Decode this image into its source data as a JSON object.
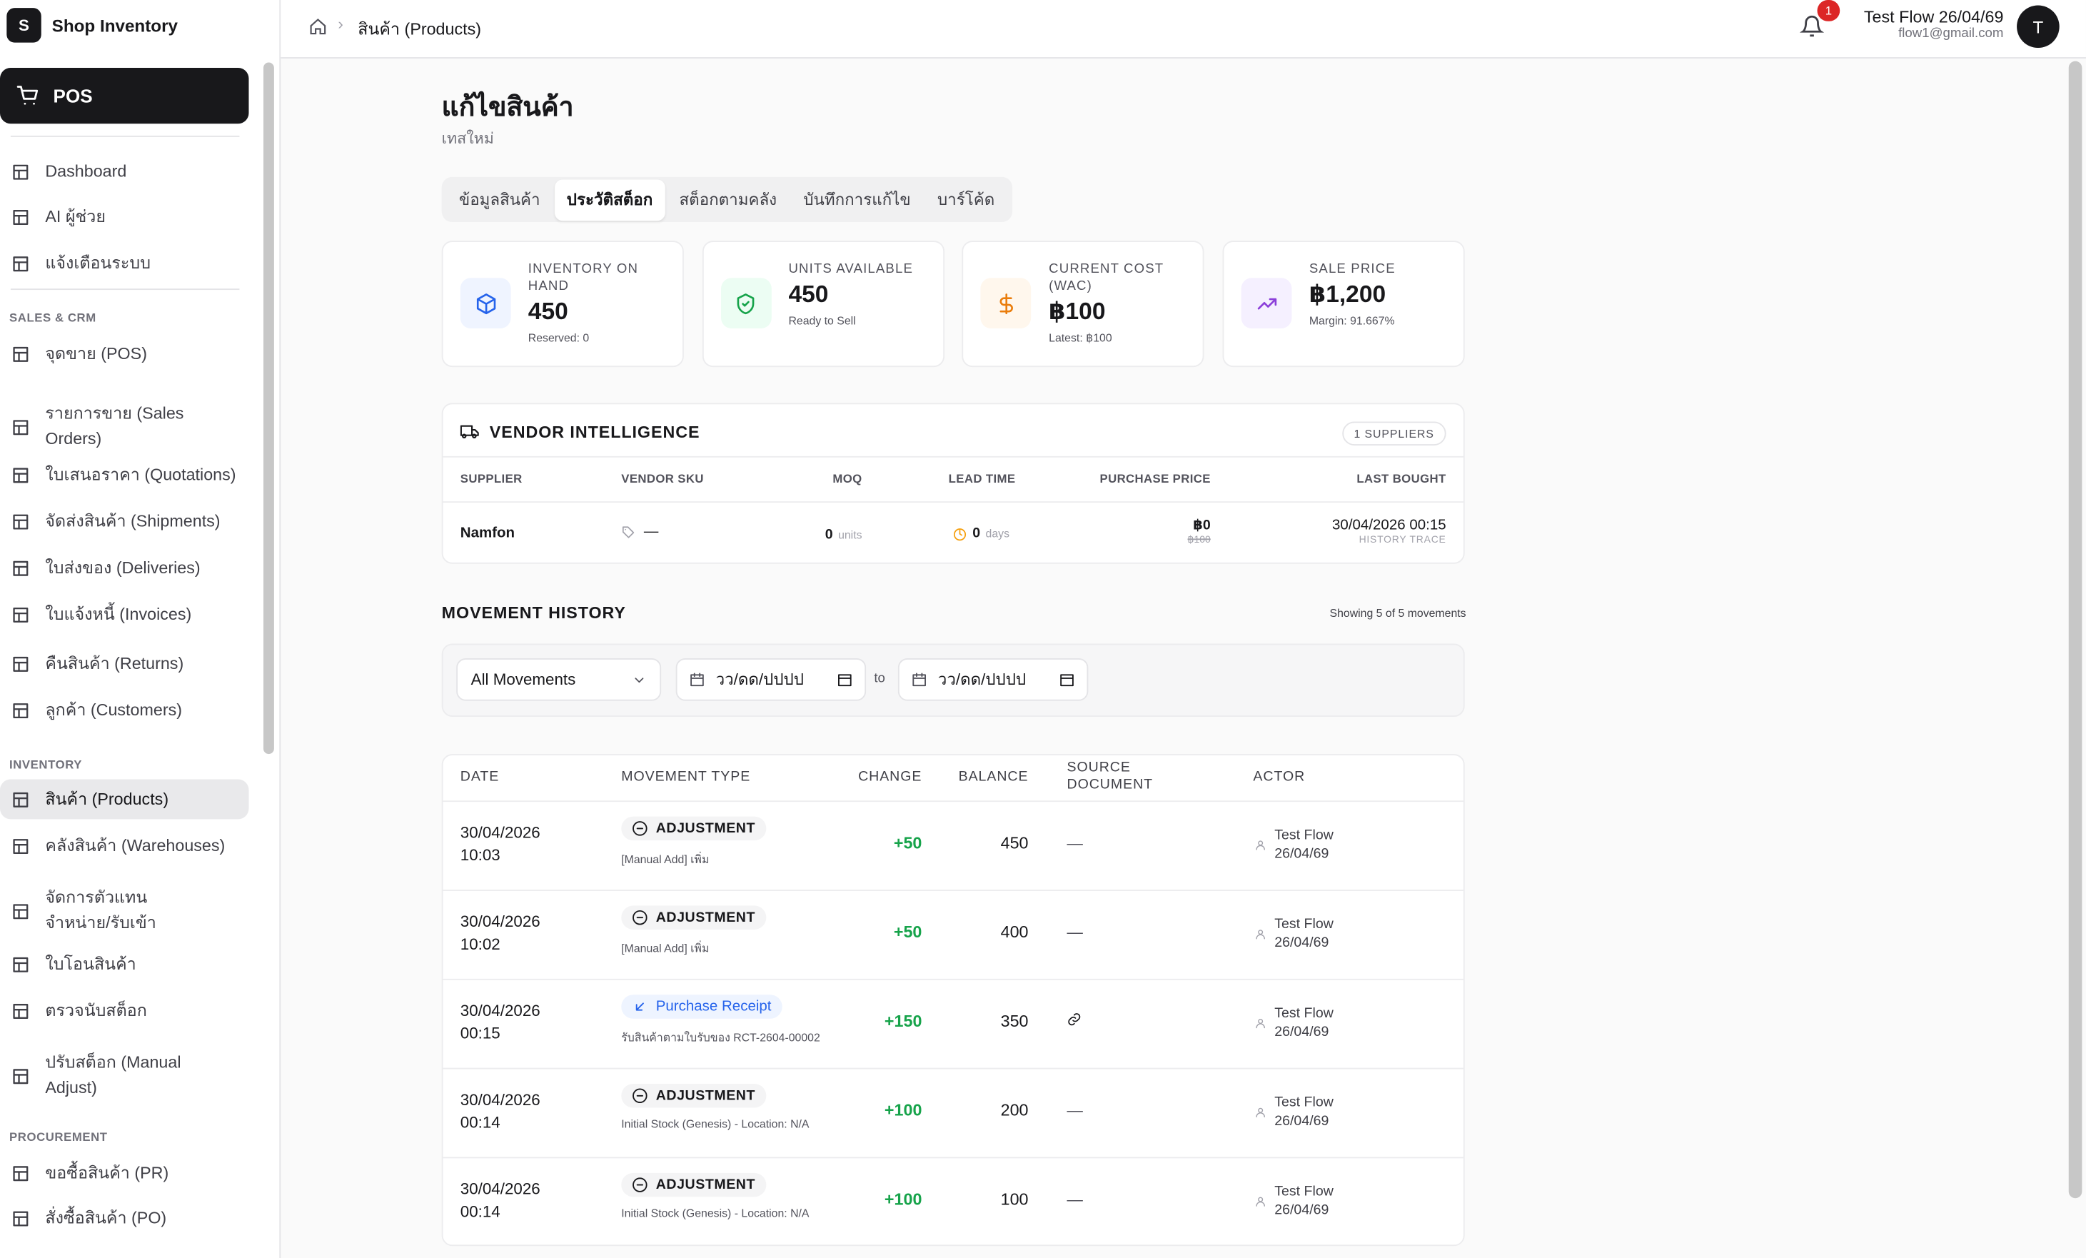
{
  "app": {
    "logo_letter": "S",
    "name": "Shop Inventory"
  },
  "breadcrumb": {
    "current": "สินค้า (Products)"
  },
  "notifications": {
    "count": 1
  },
  "user": {
    "name": "Test Flow 26/04/69",
    "email": "flow1@gmail.com",
    "avatar": "T"
  },
  "sidebar": {
    "pos": "POS",
    "top_items": [
      "Dashboard",
      "AI ผู้ช่วย",
      "แจ้งเตือนระบบ"
    ],
    "sections": [
      {
        "title": "SALES & CRM",
        "items": [
          "จุดขาย (POS)",
          "รายการขาย (Sales Orders)",
          "ใบเสนอราคา (Quotations)",
          "จัดส่งสินค้า (Shipments)",
          "ใบส่งของ (Deliveries)",
          "ใบแจ้งหนี้ (Invoices)",
          "คืนสินค้า (Returns)",
          "ลูกค้า (Customers)"
        ]
      },
      {
        "title": "INVENTORY",
        "items": [
          "สินค้า (Products)",
          "คลังสินค้า (Warehouses)",
          "จัดการตัวแทนจำหน่าย/รับเข้า",
          "ใบโอนสินค้า",
          "ตรวจนับสต็อก",
          "ปรับสต็อก (Manual Adjust)"
        ]
      },
      {
        "title": "PROCUREMENT",
        "items": [
          "ขอซื้อสินค้า (PR)",
          "สั่งซื้อสินค้า (PO)"
        ]
      }
    ]
  },
  "page": {
    "title": "แก้ไขสินค้า",
    "subtitle": "เทสใหม่",
    "tabs": [
      "ข้อมูลสินค้า",
      "ประวัติสต็อก",
      "สต็อกตามคลัง",
      "บันทึกการแก้ไข",
      "บาร์โค้ด"
    ]
  },
  "stats": [
    {
      "label": "INVENTORY ON HAND",
      "value": 450,
      "note": "Reserved: 0"
    },
    {
      "label": "UNITS AVAILABLE",
      "value": 450,
      "note": "Ready to Sell"
    },
    {
      "label": "CURRENT COST (WAC)",
      "value": "฿100",
      "note": "Latest: ฿100"
    },
    {
      "label": "SALE PRICE",
      "value": "฿1,200",
      "note": "Margin: 91.667%"
    }
  ],
  "vendor": {
    "title": "VENDOR INTELLIGENCE",
    "badge": "1 SUPPLIERS",
    "columns": [
      "SUPPLIER",
      "VENDOR SKU",
      "MOQ",
      "LEAD TIME",
      "PURCHASE PRICE",
      "LAST BOUGHT"
    ],
    "rows": [
      {
        "supplier": "Namfon",
        "sku": "—",
        "moq": 0,
        "moq_unit": "units",
        "lead": 0,
        "lead_unit": "days",
        "price": "฿0",
        "old_price": "฿100",
        "last": "30/04/2026 00:15",
        "trace": "HISTORY TRACE"
      }
    ]
  },
  "movement": {
    "title": "MOVEMENT HISTORY",
    "showing": "Showing 5 of 5 movements",
    "filter": "All Movements",
    "date_placeholder": "วว/ดด/ปปปป",
    "to": "to",
    "columns": [
      "DATE",
      "MOVEMENT TYPE",
      "CHANGE",
      "BALANCE",
      "SOURCE DOCUMENT",
      "ACTOR"
    ],
    "rows": [
      {
        "date": "30/04/2026 10:03",
        "type": "ADJUSTMENT",
        "note": "[Manual Add] เพิ่ม",
        "change": "+50",
        "balance": 450,
        "source": "—",
        "actor": "Test Flow 26/04/69"
      },
      {
        "date": "30/04/2026 10:02",
        "type": "ADJUSTMENT",
        "note": "[Manual Add] เพิ่ม",
        "change": "+50",
        "balance": 400,
        "source": "—",
        "actor": "Test Flow 26/04/69"
      },
      {
        "date": "30/04/2026 00:15",
        "type": "Purchase Receipt",
        "note": "รับสินค้าตามใบรับของ RCT-2604-00002",
        "change": "+150",
        "balance": 350,
        "actor": "Test Flow 26/04/69"
      },
      {
        "date": "30/04/2026 00:14",
        "type": "ADJUSTMENT",
        "note": "Initial Stock (Genesis) - Location: N/A",
        "change": "+100",
        "balance": 200,
        "source": "—",
        "actor": "Test Flow 26/04/69"
      },
      {
        "date": "30/04/2026 00:14",
        "type": "ADJUSTMENT",
        "note": "Initial Stock (Genesis) - Location: N/A",
        "change": "+100",
        "balance": 100,
        "source": "—",
        "actor": "Test Flow 26/04/69"
      }
    ]
  }
}
